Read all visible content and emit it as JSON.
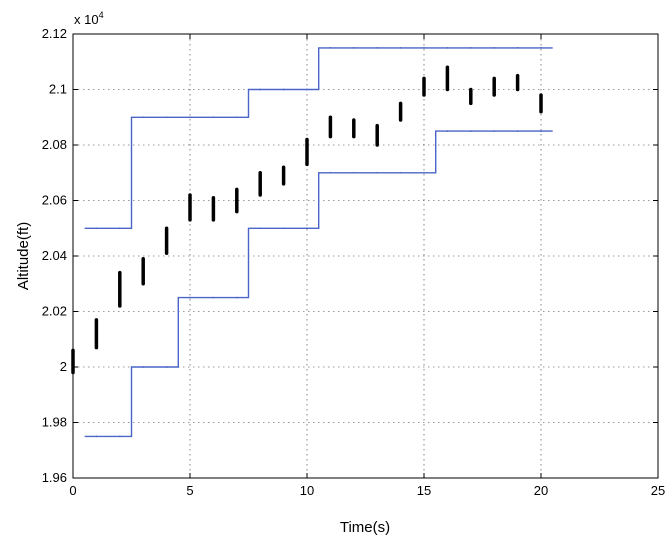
{
  "chart_data": {
    "type": "line",
    "title": "",
    "xlabel": "Time(s)",
    "ylabel": "Altitude(ft)",
    "exponent_label": "x 10",
    "exponent_power": "4",
    "xlim": [
      0,
      25
    ],
    "ylim": [
      1.96,
      2.12
    ],
    "x_ticks": [
      0,
      5,
      10,
      15,
      20,
      25
    ],
    "x_tick_labels": [
      "0",
      "5",
      "10",
      "15",
      "20",
      "25"
    ],
    "y_ticks": [
      1.96,
      1.98,
      2.0,
      2.02,
      2.04,
      2.06,
      2.08,
      2.1,
      2.12
    ],
    "y_tick_labels": [
      "1.96",
      "1.98",
      "2",
      "2.02",
      "2.04",
      "2.06",
      "2.08",
      "2.1",
      "2.12"
    ],
    "grid": true,
    "series": [
      {
        "kind": "step",
        "color": "#4a64c8",
        "x": [
          0.5,
          2.5,
          4.5,
          7.5,
          10.5,
          15.5,
          20.5
        ],
        "y": [
          2.05,
          2.09,
          2.09,
          2.1,
          2.115,
          2.115,
          2.115
        ]
      },
      {
        "kind": "step",
        "color": "#4a64c8",
        "x": [
          0.5,
          2.5,
          4.5,
          7.5,
          10.5,
          15.5,
          20.5
        ],
        "y": [
          1.975,
          2.0,
          2.025,
          2.05,
          2.07,
          2.085,
          2.085
        ]
      },
      {
        "kind": "ranges",
        "color": "#000000",
        "x": [
          0,
          1,
          2,
          3,
          4,
          5,
          6,
          7,
          8,
          9,
          10,
          11,
          12,
          13,
          14,
          15,
          16,
          17,
          18,
          19,
          20
        ],
        "low": [
          1.998,
          2.007,
          2.022,
          2.03,
          2.041,
          2.053,
          2.053,
          2.056,
          2.062,
          2.066,
          2.073,
          2.083,
          2.083,
          2.08,
          2.089,
          2.098,
          2.1,
          2.095,
          2.098,
          2.1,
          2.092
        ],
        "high": [
          2.006,
          2.017,
          2.034,
          2.039,
          2.05,
          2.062,
          2.061,
          2.064,
          2.07,
          2.072,
          2.082,
          2.09,
          2.089,
          2.087,
          2.095,
          2.104,
          2.108,
          2.1,
          2.104,
          2.105,
          2.098
        ]
      }
    ]
  }
}
